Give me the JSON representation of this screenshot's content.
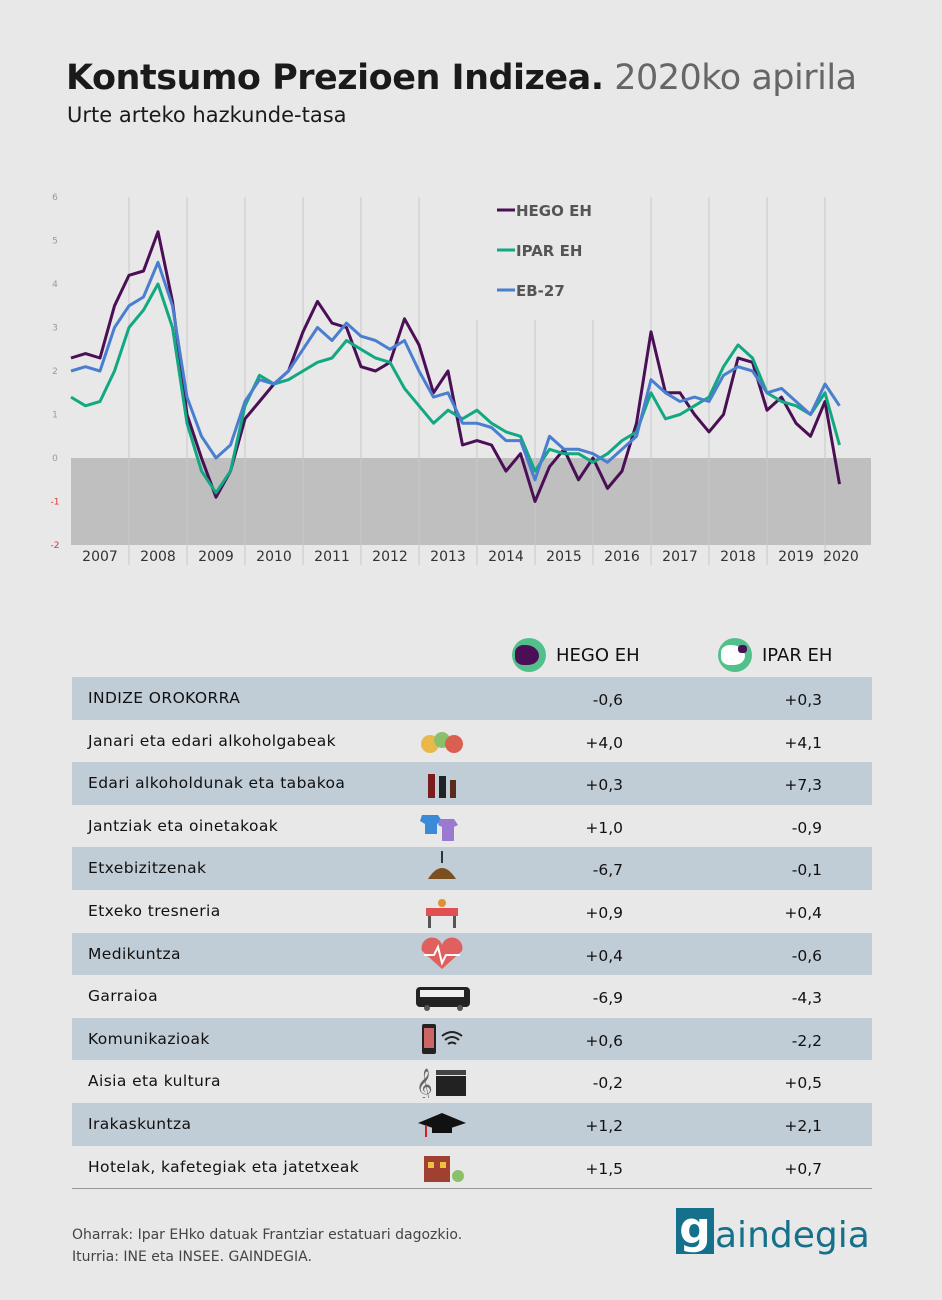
{
  "header": {
    "title": "Kontsumo Prezioen Indizea.",
    "title_date": "2020ko apirila",
    "subtitle": "Urte arteko hazkunde-tasa"
  },
  "chart_data": {
    "type": "line",
    "title": "Kontsumo Prezioen Indizea. 2020ko apirila",
    "ylabel": "Urte arteko hazkunde-tasa (%)",
    "ylim": [
      -2,
      6
    ],
    "yticks": [
      "6",
      "5",
      "4",
      "3",
      "2",
      "1",
      "0",
      "-1",
      "-2"
    ],
    "year_labels": [
      "2007",
      "2008",
      "2009",
      "2010",
      "2011",
      "2012",
      "2013",
      "2014",
      "2015",
      "2016",
      "2017",
      "2018",
      "2019",
      "2020"
    ],
    "x_start": "2007-01",
    "x_step_months": 3,
    "legend_position": "top-center",
    "series": [
      {
        "name": "HEGO EH",
        "color": "#4b0f55",
        "values": [
          2.3,
          2.4,
          2.3,
          3.5,
          4.2,
          4.3,
          5.2,
          3.6,
          1.0,
          0.0,
          -0.9,
          -0.3,
          0.9,
          1.3,
          1.7,
          2.0,
          2.9,
          3.6,
          3.1,
          3.0,
          2.1,
          2.0,
          2.2,
          3.2,
          2.6,
          1.5,
          2.0,
          0.3,
          0.4,
          0.3,
          -0.3,
          0.1,
          -1.0,
          -0.2,
          0.2,
          -0.5,
          0.0,
          -0.7,
          -0.3,
          0.8,
          2.9,
          1.5,
          1.5,
          1.0,
          0.6,
          1.0,
          2.3,
          2.2,
          1.1,
          1.4,
          0.8,
          0.5,
          1.3,
          -0.6
        ]
      },
      {
        "name": "IPAR EH",
        "color": "#12a882",
        "values": [
          1.4,
          1.2,
          1.3,
          2.0,
          3.0,
          3.4,
          4.0,
          3.0,
          0.8,
          -0.3,
          -0.8,
          -0.3,
          1.2,
          1.9,
          1.7,
          1.8,
          2.0,
          2.2,
          2.3,
          2.7,
          2.5,
          2.3,
          2.2,
          1.6,
          1.2,
          0.8,
          1.1,
          0.9,
          1.1,
          0.8,
          0.6,
          0.5,
          -0.3,
          0.2,
          0.1,
          0.1,
          -0.1,
          0.1,
          0.4,
          0.6,
          1.5,
          0.9,
          1.0,
          1.2,
          1.4,
          2.1,
          2.6,
          2.3,
          1.5,
          1.3,
          1.2,
          1.0,
          1.5,
          0.3
        ]
      },
      {
        "name": "EB-27",
        "color": "#4a7fd0",
        "values": [
          2.0,
          2.1,
          2.0,
          3.0,
          3.5,
          3.7,
          4.5,
          3.5,
          1.4,
          0.5,
          0.0,
          0.3,
          1.3,
          1.8,
          1.7,
          2.0,
          2.5,
          3.0,
          2.7,
          3.1,
          2.8,
          2.7,
          2.5,
          2.7,
          2.0,
          1.4,
          1.5,
          0.8,
          0.8,
          0.7,
          0.4,
          0.4,
          -0.5,
          0.5,
          0.2,
          0.2,
          0.1,
          -0.1,
          0.2,
          0.5,
          1.8,
          1.5,
          1.3,
          1.4,
          1.3,
          1.9,
          2.1,
          2.0,
          1.5,
          1.6,
          1.3,
          1.0,
          1.7,
          1.2
        ]
      }
    ]
  },
  "table": {
    "col1": "HEGO EH",
    "col2": "IPAR EH",
    "rows": [
      {
        "label": "INDIZE OROKORRA",
        "hego": "-0,6",
        "ipar": "+0,3",
        "icon": "none"
      },
      {
        "label": "Janari eta edari alkoholgabeak",
        "hego": "+4,0",
        "ipar": "+4,1",
        "icon": "food-icon"
      },
      {
        "label": "Edari alkoholdunak eta tabakoa",
        "hego": "+0,3",
        "ipar": "+7,3",
        "icon": "bottles-icon"
      },
      {
        "label": "Jantziak eta oinetakoak",
        "hego": "+1,0",
        "ipar": "-0,9",
        "icon": "clothes-icon"
      },
      {
        "label": "Etxebizitzenak",
        "hego": "-6,7",
        "ipar": "-0,1",
        "icon": "lamp-icon"
      },
      {
        "label": "Etxeko tresneria",
        "hego": "+0,9",
        "ipar": "+0,4",
        "icon": "table-icon"
      },
      {
        "label": "Medikuntza",
        "hego": "+0,4",
        "ipar": "-0,6",
        "icon": "heart-icon"
      },
      {
        "label": "Garraioa",
        "hego": "-6,9",
        "ipar": "-4,3",
        "icon": "bus-icon"
      },
      {
        "label": "Komunikazioak",
        "hego": "+0,6",
        "ipar": "-2,2",
        "icon": "phone-wifi-icon"
      },
      {
        "label": "Aisia eta kultura",
        "hego": "-0,2",
        "ipar": "+0,5",
        "icon": "music-clapper-icon"
      },
      {
        "label": "Irakaskuntza",
        "hego": "+1,2",
        "ipar": "+2,1",
        "icon": "graduation-cap-icon"
      },
      {
        "label": "Hotelak, kafetegiak eta jatetxeak",
        "hego": "+1,5",
        "ipar": "+0,7",
        "icon": "restaurant-icon"
      }
    ]
  },
  "footer": {
    "note": "Oharrak: Ipar EHko datuak Frantziar estatuari dagozkio.",
    "source": "Iturria: INE eta INSEE. GAINDEGIA.",
    "logo_g": "g",
    "logo_rest": "aindegia"
  }
}
